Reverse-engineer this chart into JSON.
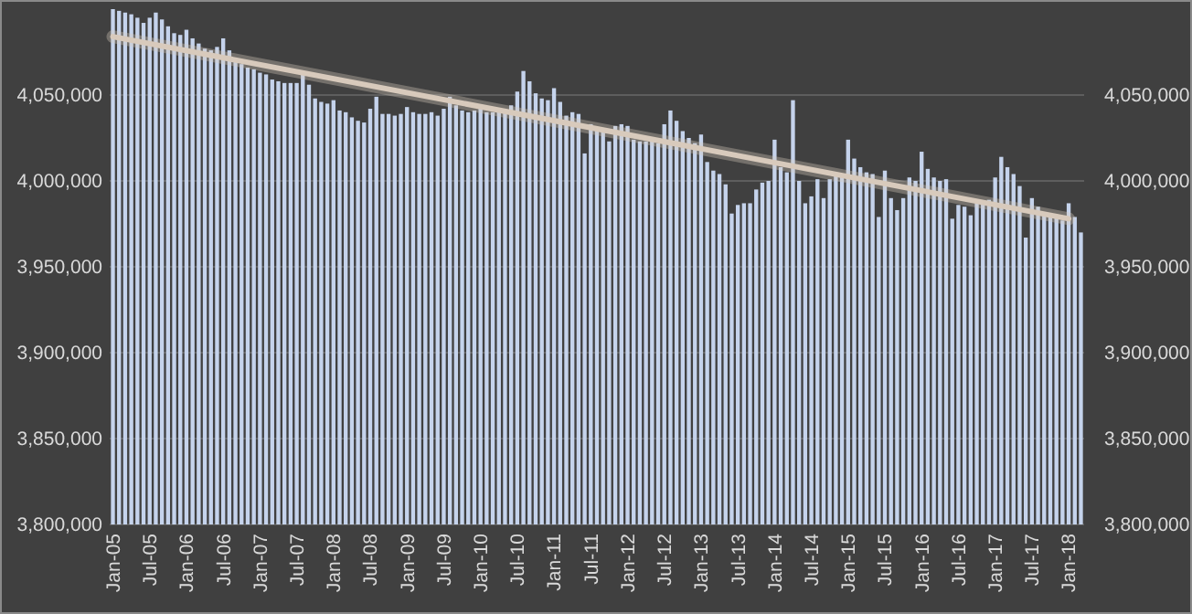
{
  "chart_data": {
    "type": "bar",
    "categories": [
      "Jan-05",
      null,
      null,
      null,
      null,
      null,
      "Jul-05",
      null,
      null,
      null,
      null,
      null,
      "Jan-06",
      null,
      null,
      null,
      null,
      null,
      "Jul-06",
      null,
      null,
      null,
      null,
      null,
      "Jan-07",
      null,
      null,
      null,
      null,
      null,
      "Jul-07",
      null,
      null,
      null,
      null,
      null,
      "Jan-08",
      null,
      null,
      null,
      null,
      null,
      "Jul-08",
      null,
      null,
      null,
      null,
      null,
      "Jan-09",
      null,
      null,
      null,
      null,
      null,
      "Jul-09",
      null,
      null,
      null,
      null,
      null,
      "Jan-10",
      null,
      null,
      null,
      null,
      null,
      "Jul-10",
      null,
      null,
      null,
      null,
      null,
      "Jan-11",
      null,
      null,
      null,
      null,
      null,
      "Jul-11",
      null,
      null,
      null,
      null,
      null,
      "Jan-12",
      null,
      null,
      null,
      null,
      null,
      "Jul-12",
      null,
      null,
      null,
      null,
      null,
      "Jan-13",
      null,
      null,
      null,
      null,
      null,
      "Jul-13",
      null,
      null,
      null,
      null,
      null,
      "Jan-14",
      null,
      null,
      null,
      null,
      null,
      "Jul-14",
      null,
      null,
      null,
      null,
      null,
      "Jan-15",
      null,
      null,
      null,
      null,
      null,
      "Jul-15",
      null,
      null,
      null,
      null,
      null,
      "Jan-16",
      null,
      null,
      null,
      null,
      null,
      "Jul-16",
      null,
      null,
      null,
      null,
      null,
      "Jan-17",
      null,
      null,
      null,
      null,
      null,
      "Jul-17",
      null,
      null,
      null,
      null,
      null,
      "Jan-18",
      null,
      null
    ],
    "series": [
      {
        "color": "#c5d3ec",
        "values": [
          4100000,
          4099000,
          4098000,
          4097000,
          4095000,
          4092000,
          4095000,
          4098000,
          4094000,
          4090000,
          4086000,
          4085000,
          4088000,
          4083000,
          4080000,
          4077000,
          4076000,
          4078000,
          4083000,
          4076000,
          4070000,
          4068000,
          4066000,
          4065000,
          4063000,
          4062000,
          4059000,
          4058000,
          4057000,
          4057000,
          4057000,
          4062000,
          4056000,
          4048000,
          4046000,
          4045000,
          4047000,
          4041000,
          4040000,
          4037000,
          4035000,
          4034000,
          4042000,
          4049000,
          4039000,
          4039000,
          4038000,
          4039000,
          4043000,
          4040000,
          4039000,
          4039000,
          4040000,
          4038000,
          4042000,
          4049000,
          4044000,
          4041000,
          4040000,
          4041000,
          4044000,
          4040000,
          4040000,
          4042000,
          4041000,
          4044000,
          4052000,
          4064000,
          4058000,
          4051000,
          4048000,
          4047000,
          4054000,
          4046000,
          4038000,
          4040000,
          4039000,
          4016000,
          4033000,
          4030000,
          4030000,
          4023000,
          4032000,
          4033000,
          4032000,
          4024000,
          4023000,
          4023000,
          4023000,
          4022000,
          4033000,
          4041000,
          4035000,
          4029000,
          4025000,
          4022000,
          4027000,
          4011000,
          4006000,
          4004000,
          3998000,
          3981000,
          3986000,
          3987000,
          3987000,
          3995000,
          3999000,
          4000000,
          4024000,
          4008000,
          4005000,
          4047000,
          4000000,
          3987000,
          3991000,
          4001000,
          3990000,
          4001000,
          4003000,
          4004000,
          4024000,
          4013000,
          4008000,
          4005000,
          4004000,
          3979000,
          4006000,
          3990000,
          3983000,
          3990000,
          4002000,
          4000000,
          4017000,
          4007000,
          4002000,
          4000000,
          4001000,
          3978000,
          3986000,
          3985000,
          3980000,
          3987000,
          3987000,
          3989000,
          4002000,
          4014000,
          4008000,
          4004000,
          3997000,
          3967000,
          3990000,
          3985000,
          3981000,
          3980000,
          3979000,
          3977000,
          3987000,
          3979000,
          3970000
        ]
      },
      {
        "type": "line",
        "color": "#d8cabc",
        "x": [
          "Jan-05",
          "Jan-18"
        ],
        "values": [
          4084000,
          3978000
        ]
      }
    ],
    "ylim": [
      3800000,
      4100000
    ],
    "yticks": [
      {
        "value": 3800000,
        "label": "3,800,000"
      },
      {
        "value": 3850000,
        "label": "3,850,000"
      },
      {
        "value": 3900000,
        "label": "3,900,000"
      },
      {
        "value": 3950000,
        "label": "3,950,000"
      },
      {
        "value": 4000000,
        "label": "4,000,000"
      },
      {
        "value": 4050000,
        "label": "4,050,000"
      }
    ],
    "y2lim": [
      3800000,
      4100000
    ],
    "y2ticks": [
      {
        "value": 3800000,
        "label": "3,800,000"
      },
      {
        "value": 3850000,
        "label": "3,850,000"
      },
      {
        "value": 3900000,
        "label": "3,900,000"
      },
      {
        "value": 3950000,
        "label": "3,950,000"
      },
      {
        "value": 4000000,
        "label": "4,000,000"
      },
      {
        "value": 4050000,
        "label": "4,050,000"
      }
    ],
    "grid": "y"
  }
}
